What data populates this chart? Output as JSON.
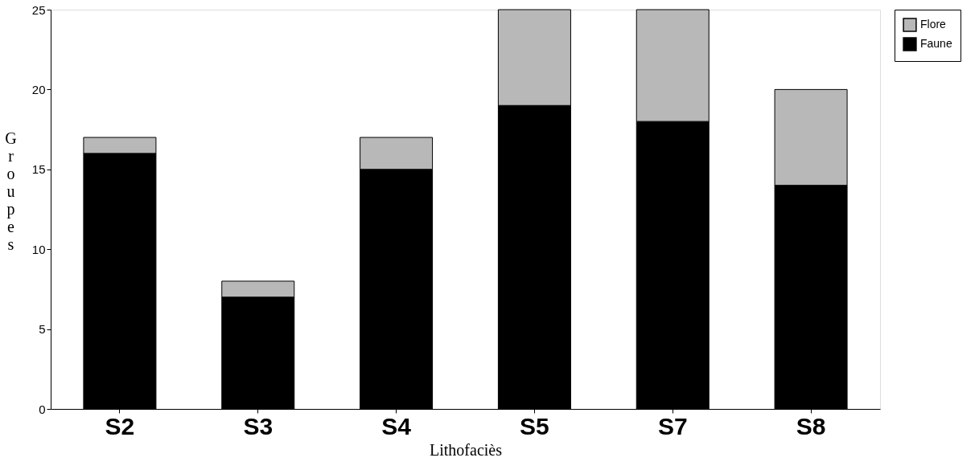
{
  "chart_data": {
    "type": "bar",
    "stacked": true,
    "xlabel": "Lithofaciès",
    "ylabel": "Groupes",
    "categories": [
      "S2",
      "S3",
      "S4",
      "S5",
      "S7",
      "S8"
    ],
    "series": [
      {
        "name": "Faune",
        "color": "#000000",
        "values": [
          16,
          7,
          15,
          19,
          18,
          14
        ]
      },
      {
        "name": "Flore",
        "color": "#b8b8b8",
        "values": [
          1,
          1,
          2,
          6,
          7,
          6
        ]
      }
    ],
    "ylim": [
      0,
      25
    ],
    "yticks": [
      0,
      5,
      10,
      15,
      20,
      25
    ],
    "grid": false,
    "legend": "right"
  }
}
